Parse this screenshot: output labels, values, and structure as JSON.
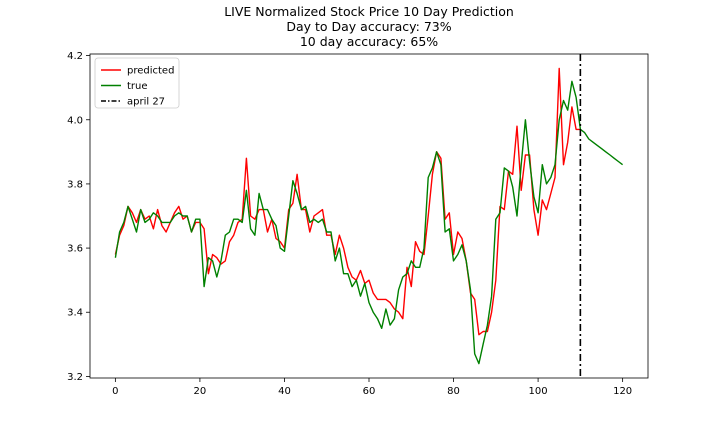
{
  "chart_data": {
    "type": "line",
    "title_lines": [
      "LIVE Normalized Stock Price 10 Day Prediction",
      "Day to Day accuracy: 73%",
      "10 day accuracy: 65%"
    ],
    "xlim": [
      -6,
      126
    ],
    "ylim": [
      3.195,
      4.205
    ],
    "xticks": [
      0,
      20,
      40,
      60,
      80,
      100,
      120
    ],
    "yticks": [
      3.2,
      3.4,
      3.6,
      3.8,
      4.0,
      4.2
    ],
    "legend_position": "top-left",
    "vline": {
      "x": 110,
      "label": "april 27",
      "color": "#000000",
      "style": "dashdot"
    },
    "series": [
      {
        "name": "predicted",
        "color": "#ff0000",
        "x": [
          0,
          1,
          2,
          3,
          4,
          5,
          6,
          7,
          8,
          9,
          10,
          11,
          12,
          13,
          14,
          15,
          16,
          17,
          18,
          19,
          20,
          21,
          22,
          23,
          24,
          25,
          26,
          27,
          28,
          29,
          30,
          31,
          32,
          33,
          34,
          35,
          36,
          37,
          38,
          39,
          40,
          41,
          42,
          43,
          44,
          45,
          46,
          47,
          48,
          49,
          50,
          51,
          52,
          53,
          54,
          55,
          56,
          57,
          58,
          59,
          60,
          61,
          62,
          63,
          64,
          65,
          66,
          67,
          68,
          69,
          70,
          71,
          72,
          73,
          74,
          75,
          76,
          77,
          78,
          79,
          80,
          81,
          82,
          83,
          84,
          85,
          86,
          87,
          88,
          89,
          90,
          91,
          92,
          93,
          94,
          95,
          96,
          97,
          98,
          99,
          100,
          101,
          102,
          103,
          104,
          105,
          106,
          107,
          108,
          109,
          110
        ],
        "values": [
          3.58,
          3.64,
          3.67,
          3.73,
          3.71,
          3.68,
          3.72,
          3.69,
          3.7,
          3.66,
          3.72,
          3.67,
          3.65,
          3.68,
          3.71,
          3.73,
          3.69,
          3.7,
          3.65,
          3.68,
          3.68,
          3.66,
          3.52,
          3.58,
          3.57,
          3.55,
          3.56,
          3.62,
          3.64,
          3.68,
          3.69,
          3.88,
          3.7,
          3.69,
          3.72,
          3.72,
          3.65,
          3.69,
          3.63,
          3.62,
          3.6,
          3.72,
          3.74,
          3.83,
          3.72,
          3.72,
          3.65,
          3.7,
          3.71,
          3.72,
          3.64,
          3.64,
          3.58,
          3.64,
          3.6,
          3.54,
          3.51,
          3.5,
          3.53,
          3.49,
          3.5,
          3.46,
          3.44,
          3.44,
          3.44,
          3.43,
          3.41,
          3.4,
          3.38,
          3.54,
          3.48,
          3.62,
          3.59,
          3.58,
          3.7,
          3.83,
          3.9,
          3.88,
          3.69,
          3.71,
          3.58,
          3.65,
          3.63,
          3.56,
          3.46,
          3.44,
          3.33,
          3.34,
          3.34,
          3.4,
          3.5,
          3.73,
          3.72,
          3.84,
          3.83,
          3.98,
          3.78,
          3.89,
          3.89,
          3.72,
          3.64,
          3.75,
          3.72,
          3.77,
          3.82,
          4.16,
          3.86,
          3.93,
          4.04,
          3.97,
          3.97
        ]
      },
      {
        "name": "true",
        "color": "#008000",
        "x": [
          0,
          1,
          2,
          3,
          4,
          5,
          6,
          7,
          8,
          9,
          10,
          11,
          12,
          13,
          14,
          15,
          16,
          17,
          18,
          19,
          20,
          21,
          22,
          23,
          24,
          25,
          26,
          27,
          28,
          29,
          30,
          31,
          32,
          33,
          34,
          35,
          36,
          37,
          38,
          39,
          40,
          41,
          42,
          43,
          44,
          45,
          46,
          47,
          48,
          49,
          50,
          51,
          52,
          53,
          54,
          55,
          56,
          57,
          58,
          59,
          60,
          61,
          62,
          63,
          64,
          65,
          66,
          67,
          68,
          69,
          70,
          71,
          72,
          73,
          74,
          75,
          76,
          77,
          78,
          79,
          80,
          81,
          82,
          83,
          84,
          85,
          86,
          87,
          88,
          89,
          90,
          91,
          92,
          93,
          94,
          95,
          96,
          97,
          98,
          99,
          100,
          101,
          102,
          103,
          104,
          105,
          106,
          107,
          108,
          109,
          110,
          111,
          112,
          113,
          114,
          115,
          116,
          117,
          118,
          119,
          120
        ],
        "values": [
          3.57,
          3.65,
          3.68,
          3.73,
          3.69,
          3.65,
          3.72,
          3.68,
          3.69,
          3.71,
          3.7,
          3.68,
          3.68,
          3.68,
          3.7,
          3.71,
          3.7,
          3.7,
          3.65,
          3.69,
          3.69,
          3.48,
          3.57,
          3.56,
          3.51,
          3.56,
          3.64,
          3.65,
          3.69,
          3.69,
          3.68,
          3.78,
          3.66,
          3.64,
          3.77,
          3.72,
          3.72,
          3.69,
          3.67,
          3.6,
          3.59,
          3.7,
          3.81,
          3.77,
          3.72,
          3.73,
          3.68,
          3.69,
          3.68,
          3.69,
          3.65,
          3.65,
          3.56,
          3.6,
          3.52,
          3.52,
          3.48,
          3.5,
          3.45,
          3.49,
          3.43,
          3.4,
          3.38,
          3.35,
          3.41,
          3.36,
          3.38,
          3.47,
          3.51,
          3.52,
          3.56,
          3.54,
          3.54,
          3.6,
          3.82,
          3.85,
          3.9,
          3.86,
          3.65,
          3.66,
          3.56,
          3.58,
          3.61,
          3.56,
          3.47,
          3.27,
          3.24,
          3.3,
          3.36,
          3.45,
          3.69,
          3.71,
          3.85,
          3.84,
          3.79,
          3.7,
          3.86,
          4.0,
          3.87,
          3.76,
          3.71,
          3.86,
          3.8,
          3.82,
          3.86,
          4.0,
          4.06,
          4.03,
          4.12,
          4.07,
          3.97,
          3.96,
          3.94,
          3.93,
          3.92,
          3.91,
          3.9,
          3.89,
          3.88,
          3.87,
          3.86
        ]
      }
    ]
  }
}
